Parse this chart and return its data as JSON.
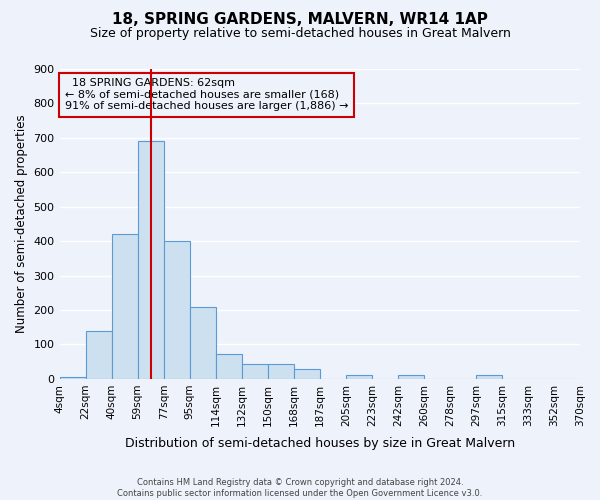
{
  "title": "18, SPRING GARDENS, MALVERN, WR14 1AP",
  "subtitle": "Size of property relative to semi-detached houses in Great Malvern",
  "xlabel": "Distribution of semi-detached houses by size in Great Malvern",
  "ylabel": "Number of semi-detached properties",
  "bin_edges": [
    "4sqm",
    "22sqm",
    "40sqm",
    "59sqm",
    "77sqm",
    "95sqm",
    "114sqm",
    "132sqm",
    "150sqm",
    "168sqm",
    "187sqm",
    "205sqm",
    "223sqm",
    "242sqm",
    "260sqm",
    "278sqm",
    "297sqm",
    "315sqm",
    "333sqm",
    "352sqm",
    "370sqm"
  ],
  "bar_values": [
    5,
    140,
    420,
    690,
    400,
    208,
    72,
    42,
    42,
    28,
    0,
    12,
    0,
    12,
    0,
    0,
    12,
    0,
    0,
    0
  ],
  "bar_color": "#cce0f0",
  "bar_edge_color": "#5b9bd5",
  "ylim": [
    0,
    900
  ],
  "yticks": [
    0,
    100,
    200,
    300,
    400,
    500,
    600,
    700,
    800,
    900
  ],
  "property_label": "18 SPRING GARDENS: 62sqm",
  "pct_smaller": 8,
  "pct_smaller_count": 168,
  "pct_larger": 91,
  "pct_larger_count": 1886,
  "red_line_x": 3.5,
  "footer_line1": "Contains HM Land Registry data © Crown copyright and database right 2024.",
  "footer_line2": "Contains public sector information licensed under the Open Government Licence v3.0.",
  "background_color": "#eef2fb",
  "grid_color": "#ffffff",
  "annotation_box_edge": "#cc0000",
  "red_line_color": "#cc0000"
}
